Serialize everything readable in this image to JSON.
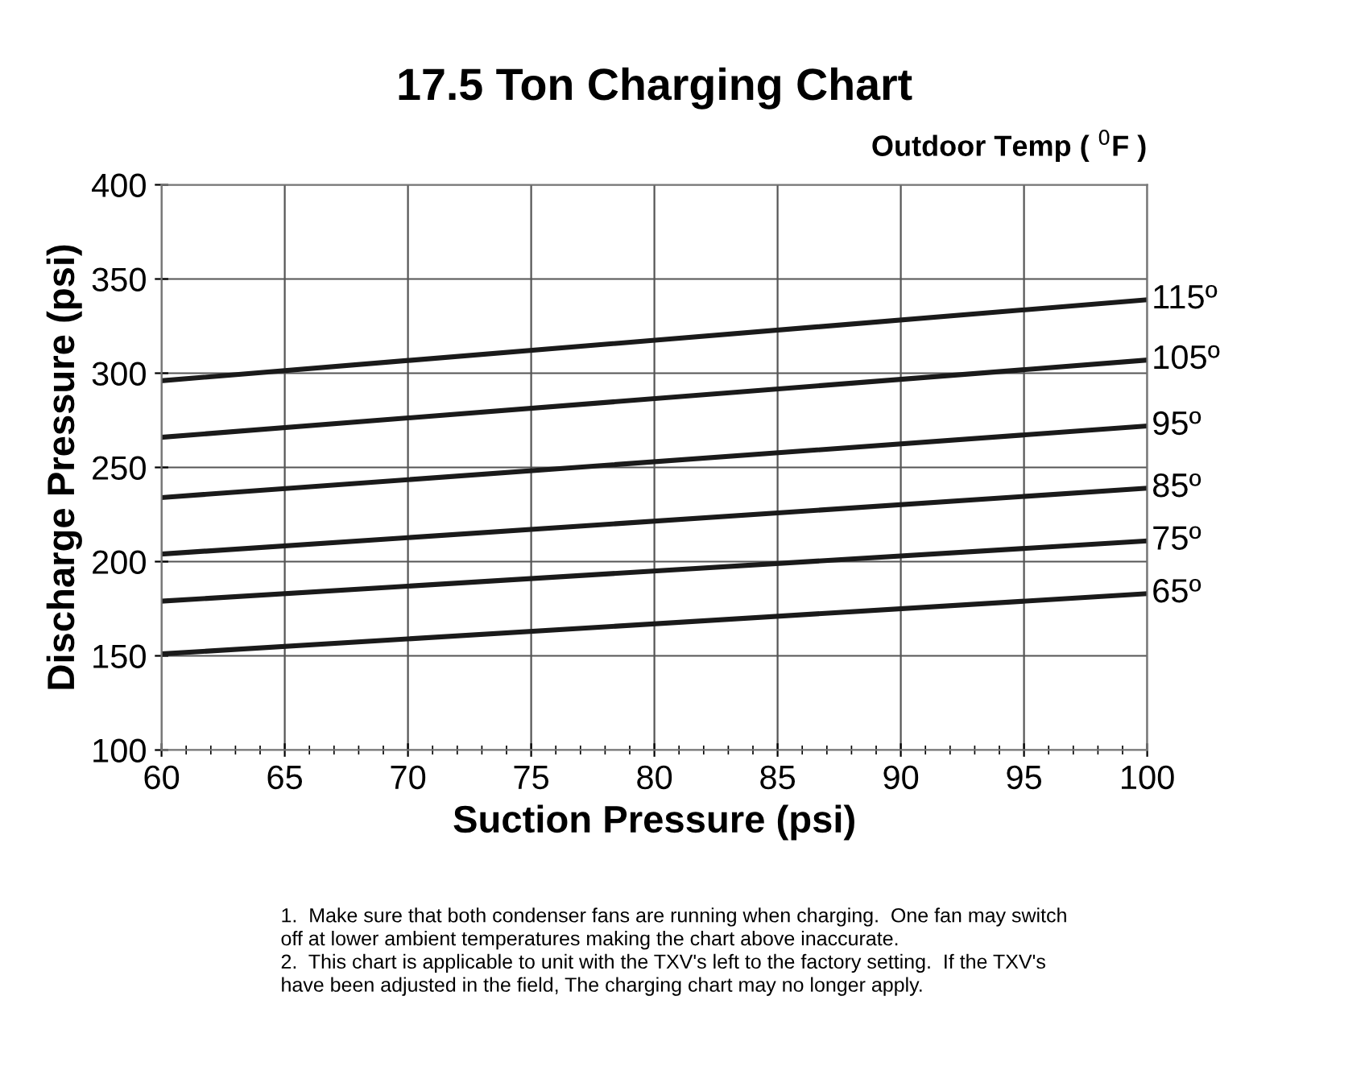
{
  "chart_data": {
    "type": "line",
    "title": "17.5 Ton Charging Chart",
    "legend_title": "Outdoor Temp ( $^{0}$F )",
    "xlabel": "Suction Pressure (psi)",
    "ylabel": "Discharge Pressure (psi)",
    "x": [
      60,
      100
    ],
    "series": [
      {
        "name": "115º",
        "color": "#1a1a1a",
        "values": [
          296,
          339
        ]
      },
      {
        "name": "105º",
        "color": "#1a1a1a",
        "values": [
          266,
          307
        ]
      },
      {
        "name": "95º",
        "color": "#1a1a1a",
        "values": [
          234,
          272
        ]
      },
      {
        "name": "85º",
        "color": "#1a1a1a",
        "values": [
          204,
          239
        ]
      },
      {
        "name": "75º",
        "color": "#1a1a1a",
        "values": [
          179,
          211
        ]
      },
      {
        "name": "65º",
        "color": "#1a1a1a",
        "values": [
          151,
          183
        ]
      }
    ],
    "xlim": [
      60,
      100
    ],
    "xticks": [
      60,
      65,
      70,
      75,
      80,
      85,
      90,
      95,
      100
    ],
    "ylim": [
      100,
      400
    ],
    "yticks": [
      100,
      150,
      200,
      250,
      300,
      350,
      400
    ],
    "grid": true,
    "marker": "none",
    "line_style": "solid",
    "annotations": [
      "1.  Make sure that both condenser fans are running when charging.  One fan may switch\noff at lower ambient temperatures making the chart above inaccurate.\n2.  This chart is applicable to unit with the TXV's left to the factory setting.  If the TXV's\nhave been adjusted in the field, The charging chart may no longer apply."
    ]
  }
}
